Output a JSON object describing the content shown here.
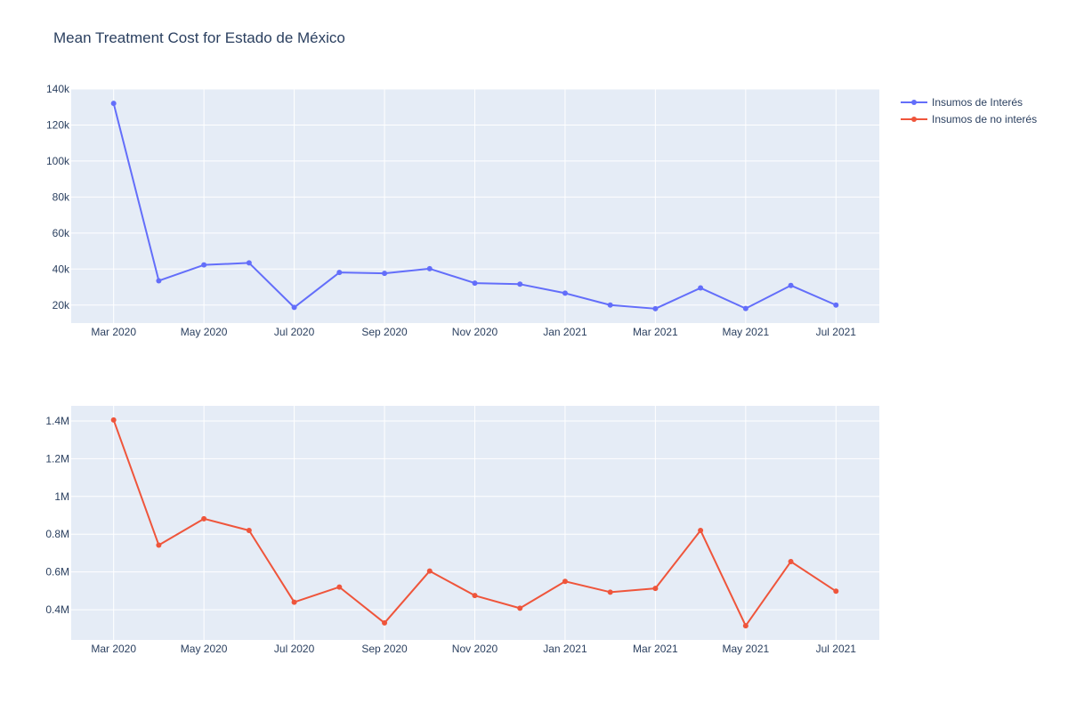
{
  "chart_data": {
    "type": "line",
    "title": "Mean Treatment Cost for Estado de México",
    "legend_position": "top-right",
    "grid": true,
    "x": [
      "2020-03",
      "2020-04",
      "2020-05",
      "2020-06",
      "2020-07",
      "2020-08",
      "2020-09",
      "2020-10",
      "2020-11",
      "2020-12",
      "2021-01",
      "2021-02",
      "2021-03",
      "2021-04",
      "2021-05",
      "2021-06",
      "2021-07"
    ],
    "x_ticks": [
      {
        "date": "2020-03",
        "label": "Mar 2020"
      },
      {
        "date": "2020-05",
        "label": "May 2020"
      },
      {
        "date": "2020-07",
        "label": "Jul 2020"
      },
      {
        "date": "2020-09",
        "label": "Sep 2020"
      },
      {
        "date": "2020-11",
        "label": "Nov 2020"
      },
      {
        "date": "2021-01",
        "label": "Jan 2021"
      },
      {
        "date": "2021-03",
        "label": "Mar 2021"
      },
      {
        "date": "2021-05",
        "label": "May 2021"
      },
      {
        "date": "2021-07",
        "label": "Jul 2021"
      }
    ],
    "series": [
      {
        "name": "Insumos de Interés",
        "color": "#636efa",
        "values": [
          132000,
          33500,
          42300,
          43400,
          18700,
          38100,
          37600,
          40200,
          32200,
          31600,
          26600,
          20000,
          18000,
          29500,
          18100,
          30900,
          20000
        ],
        "ylim": [
          10000,
          140000
        ],
        "y_ticks": [
          {
            "value": 20000,
            "label": "20k"
          },
          {
            "value": 40000,
            "label": "40k"
          },
          {
            "value": 60000,
            "label": "60k"
          },
          {
            "value": 80000,
            "label": "80k"
          },
          {
            "value": 100000,
            "label": "100k"
          },
          {
            "value": 120000,
            "label": "120k"
          },
          {
            "value": 140000,
            "label": "140k"
          }
        ]
      },
      {
        "name": "Insumos de no interés",
        "color": "#ef553b",
        "values": [
          1405000,
          742000,
          882000,
          820000,
          440000,
          520000,
          330000,
          605000,
          475000,
          408000,
          550000,
          493000,
          513000,
          820000,
          315000,
          655000,
          498000
        ],
        "ylim": [
          240000,
          1480000
        ],
        "y_ticks": [
          {
            "value": 400000,
            "label": "0.4M"
          },
          {
            "value": 600000,
            "label": "0.6M"
          },
          {
            "value": 800000,
            "label": "0.8M"
          },
          {
            "value": 1000000,
            "label": "1M"
          },
          {
            "value": 1200000,
            "label": "1.2M"
          },
          {
            "value": 1400000,
            "label": "1.4M"
          }
        ]
      }
    ]
  }
}
